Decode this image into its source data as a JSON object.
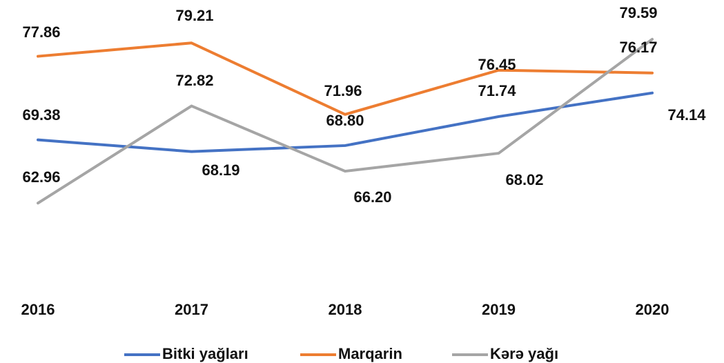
{
  "chart_data": {
    "type": "line",
    "categories": [
      "2016",
      "2017",
      "2018",
      "2019",
      "2020"
    ],
    "ylim": [
      55,
      80
    ],
    "legend": "bottom",
    "series": [
      {
        "name": "Bitki yağları",
        "color": "#4472c4",
        "values": [
          69.38,
          68.19,
          68.8,
          71.74,
          74.14
        ],
        "value_labels": [
          "69.38",
          "68.19",
          "68.80",
          "71.74",
          "74.14"
        ]
      },
      {
        "name": "Marqarin",
        "color": "#ed7d31",
        "values": [
          77.86,
          79.21,
          71.96,
          76.45,
          76.17
        ],
        "value_labels": [
          "77.86",
          "79.21",
          "71.96",
          "76.45",
          "76.17"
        ]
      },
      {
        "name": "Kərə yağı",
        "color": "#a5a5a5",
        "values": [
          62.96,
          72.82,
          66.2,
          68.02,
          79.59
        ],
        "value_labels": [
          "62.96",
          "72.82",
          "66.20",
          "68.02",
          "79.59"
        ]
      }
    ]
  }
}
